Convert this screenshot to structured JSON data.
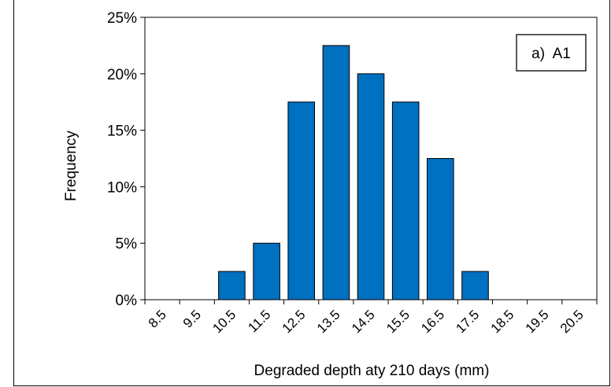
{
  "chart_data": {
    "type": "bar",
    "categories": [
      "8.5",
      "9.5",
      "10.5",
      "11.5",
      "12.5",
      "13.5",
      "14.5",
      "15.5",
      "16.5",
      "17.5",
      "18.5",
      "19.5",
      "20.5"
    ],
    "values": [
      0,
      0,
      2.5,
      5,
      17.5,
      22.5,
      20,
      17.5,
      12.5,
      2.5,
      0,
      0,
      0
    ],
    "title": "",
    "xlabel": "Degraded depth aty 210 days (mm)",
    "ylabel": "Frequency",
    "ylim": [
      0,
      25
    ],
    "yticks": [
      "0%",
      "5%",
      "10%",
      "15%",
      "20%",
      "25%"
    ],
    "legend_label": "a)  A1",
    "grid": false,
    "bar_color": "#0070C0",
    "bar_edge_color": "#000000"
  }
}
